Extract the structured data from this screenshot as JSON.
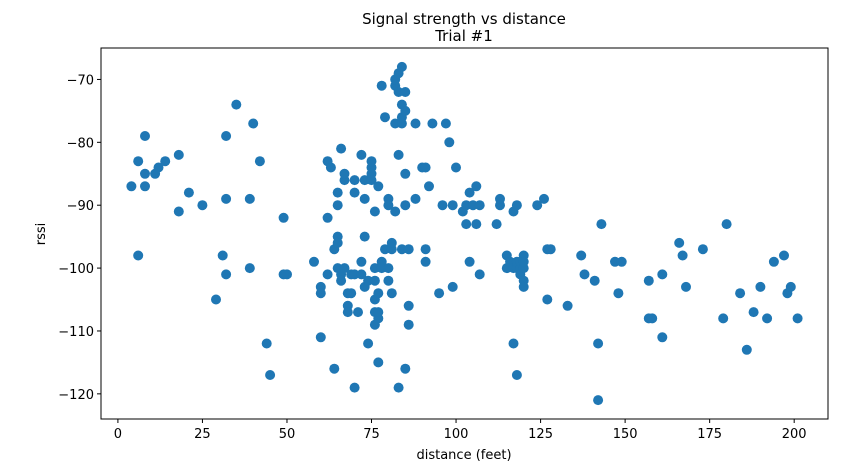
{
  "chart_data": {
    "type": "scatter",
    "title": "Signal strength vs distance",
    "subtitle": "Trial #1",
    "xlabel": "distance (feet)",
    "ylabel": "rssi",
    "xlim": [
      -5,
      210
    ],
    "ylim": [
      -124,
      -65
    ],
    "xticks": [
      0,
      25,
      50,
      75,
      100,
      125,
      150,
      175,
      200
    ],
    "yticks": [
      -70,
      -80,
      -90,
      -100,
      -110,
      -120
    ],
    "grid": false,
    "marker_color": "#1f77b4",
    "series": [
      {
        "points": [
          [
            4,
            -87
          ],
          [
            6,
            -83
          ],
          [
            6,
            -98
          ],
          [
            8,
            -79
          ],
          [
            8,
            -85
          ],
          [
            8,
            -87
          ],
          [
            11,
            -85
          ],
          [
            12,
            -84
          ],
          [
            14,
            -83
          ],
          [
            18,
            -91
          ],
          [
            18,
            -82
          ],
          [
            21,
            -88
          ],
          [
            25,
            -90
          ],
          [
            29,
            -105
          ],
          [
            31,
            -98
          ],
          [
            32,
            -89
          ],
          [
            32,
            -101
          ],
          [
            32,
            -79
          ],
          [
            35,
            -74
          ],
          [
            39,
            -89
          ],
          [
            39,
            -100
          ],
          [
            40,
            -77
          ],
          [
            42,
            -83
          ],
          [
            44,
            -112
          ],
          [
            45,
            -117
          ],
          [
            49,
            -92
          ],
          [
            50,
            -101
          ],
          [
            49,
            -101
          ],
          [
            58,
            -99
          ],
          [
            60,
            -103
          ],
          [
            60,
            -104
          ],
          [
            60,
            -111
          ],
          [
            62,
            -83
          ],
          [
            62,
            -101
          ],
          [
            62,
            -92
          ],
          [
            63,
            -84
          ],
          [
            64,
            -116
          ],
          [
            64,
            -97
          ],
          [
            65,
            -88
          ],
          [
            65,
            -90
          ],
          [
            65,
            -95
          ],
          [
            65,
            -96
          ],
          [
            65,
            -100
          ],
          [
            66,
            -81
          ],
          [
            66,
            -101
          ],
          [
            66,
            -102
          ],
          [
            67,
            -86
          ],
          [
            67,
            -85
          ],
          [
            67,
            -100
          ],
          [
            68,
            -106
          ],
          [
            68,
            -104
          ],
          [
            68,
            -107
          ],
          [
            69,
            -101
          ],
          [
            69,
            -104
          ],
          [
            70,
            -88
          ],
          [
            70,
            -86
          ],
          [
            70,
            -119
          ],
          [
            70,
            -101
          ],
          [
            71,
            -107
          ],
          [
            72,
            -101
          ],
          [
            72,
            -99
          ],
          [
            72,
            -82
          ],
          [
            73,
            -95
          ],
          [
            73,
            -89
          ],
          [
            73,
            -86
          ],
          [
            73,
            -103
          ],
          [
            74,
            -112
          ],
          [
            74,
            -102
          ],
          [
            75,
            -84
          ],
          [
            75,
            -85
          ],
          [
            75,
            -86
          ],
          [
            75,
            -83
          ],
          [
            76,
            -91
          ],
          [
            76,
            -100
          ],
          [
            76,
            -102
          ],
          [
            76,
            -105
          ],
          [
            76,
            -107
          ],
          [
            76,
            -109
          ],
          [
            77,
            -115
          ],
          [
            77,
            -87
          ],
          [
            77,
            -108
          ],
          [
            77,
            -104
          ],
          [
            77,
            -107
          ],
          [
            78,
            -99
          ],
          [
            78,
            -100
          ],
          [
            78,
            -71
          ],
          [
            79,
            -76
          ],
          [
            79,
            -97
          ],
          [
            80,
            -89
          ],
          [
            80,
            -90
          ],
          [
            80,
            -100
          ],
          [
            80,
            -102
          ],
          [
            81,
            -104
          ],
          [
            81,
            -97
          ],
          [
            81,
            -96
          ],
          [
            82,
            -91
          ],
          [
            82,
            -77
          ],
          [
            82,
            -71
          ],
          [
            82,
            -70
          ],
          [
            83,
            -69
          ],
          [
            83,
            -72
          ],
          [
            83,
            -119
          ],
          [
            83,
            -82
          ],
          [
            84,
            -97
          ],
          [
            84,
            -68
          ],
          [
            84,
            -77
          ],
          [
            84,
            -76
          ],
          [
            84,
            -74
          ],
          [
            85,
            -75
          ],
          [
            85,
            -72
          ],
          [
            85,
            -90
          ],
          [
            85,
            -116
          ],
          [
            85,
            -85
          ],
          [
            86,
            -97
          ],
          [
            86,
            -106
          ],
          [
            86,
            -109
          ],
          [
            88,
            -89
          ],
          [
            88,
            -77
          ],
          [
            90,
            -84
          ],
          [
            91,
            -84
          ],
          [
            91,
            -99
          ],
          [
            91,
            -97
          ],
          [
            92,
            -87
          ],
          [
            93,
            -77
          ],
          [
            95,
            -104
          ],
          [
            96,
            -90
          ],
          [
            97,
            -77
          ],
          [
            98,
            -80
          ],
          [
            99,
            -90
          ],
          [
            99,
            -103
          ],
          [
            100,
            -84
          ],
          [
            102,
            -91
          ],
          [
            103,
            -93
          ],
          [
            103,
            -90
          ],
          [
            104,
            -99
          ],
          [
            104,
            -88
          ],
          [
            105,
            -90
          ],
          [
            106,
            -87
          ],
          [
            106,
            -93
          ],
          [
            107,
            -101
          ],
          [
            107,
            -90
          ],
          [
            112,
            -93
          ],
          [
            113,
            -90
          ],
          [
            113,
            -89
          ],
          [
            115,
            -100
          ],
          [
            115,
            -98
          ],
          [
            116,
            -99
          ],
          [
            117,
            -112
          ],
          [
            117,
            -91
          ],
          [
            117,
            -100
          ],
          [
            118,
            -100
          ],
          [
            118,
            -117
          ],
          [
            118,
            -99
          ],
          [
            118,
            -90
          ],
          [
            119,
            -100
          ],
          [
            119,
            -99
          ],
          [
            119,
            -101
          ],
          [
            120,
            -98
          ],
          [
            120,
            -102
          ],
          [
            120,
            -103
          ],
          [
            120,
            -100
          ],
          [
            120,
            -99
          ],
          [
            124,
            -90
          ],
          [
            126,
            -89
          ],
          [
            127,
            -97
          ],
          [
            127,
            -105
          ],
          [
            128,
            -97
          ],
          [
            133,
            -106
          ],
          [
            137,
            -98
          ],
          [
            138,
            -101
          ],
          [
            141,
            -102
          ],
          [
            142,
            -121
          ],
          [
            142,
            -112
          ],
          [
            143,
            -93
          ],
          [
            147,
            -99
          ],
          [
            148,
            -104
          ],
          [
            149,
            -99
          ],
          [
            157,
            -102
          ],
          [
            157,
            -108
          ],
          [
            158,
            -108
          ],
          [
            161,
            -101
          ],
          [
            161,
            -111
          ],
          [
            166,
            -96
          ],
          [
            167,
            -98
          ],
          [
            168,
            -103
          ],
          [
            173,
            -97
          ],
          [
            179,
            -108
          ],
          [
            180,
            -93
          ],
          [
            184,
            -104
          ],
          [
            186,
            -113
          ],
          [
            188,
            -107
          ],
          [
            190,
            -103
          ],
          [
            192,
            -108
          ],
          [
            194,
            -99
          ],
          [
            197,
            -98
          ],
          [
            198,
            -104
          ],
          [
            199,
            -103
          ],
          [
            201,
            -108
          ]
        ]
      }
    ]
  }
}
